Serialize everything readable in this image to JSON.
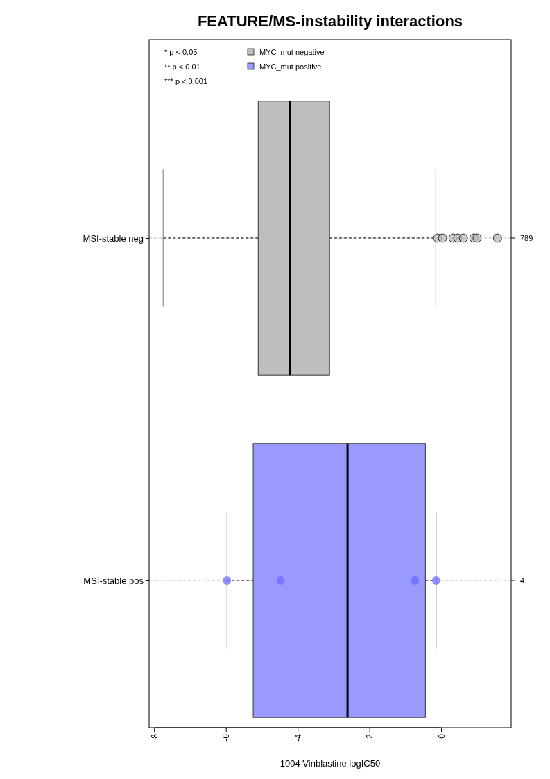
{
  "chart_data": {
    "type": "box",
    "orientation": "horizontal",
    "title": "FEATURE/MS-instability interactions",
    "xlabel": "1004 Vinblastine logIC50",
    "categories": [
      "MSI-stable neg",
      "MSI-stable pos"
    ],
    "xlim": [
      -8.14,
      1.95
    ],
    "xticks": [
      -8,
      -6,
      -4,
      -2,
      0
    ],
    "series": [
      {
        "name": "MYC_mut negative",
        "color": "#bebebe",
        "boxes": [
          {
            "low": -7.75,
            "q1": -5.1,
            "median": -4.21,
            "q3": -3.11,
            "high": -0.15,
            "outliers": [
              -0.1,
              0.04,
              0.33,
              0.46,
              0.62,
              0.91,
              1.0,
              1.57
            ]
          },
          null
        ]
      },
      {
        "name": "MYC_mut positive",
        "color": "#9999ff",
        "boxes": [
          null,
          {
            "low": -5.97,
            "q1": -5.24,
            "median": -2.61,
            "q3": -0.44,
            "high": -0.14
          }
        ]
      },
      {
        "type": "scatter",
        "color": "#6a6aff",
        "x": [
          "MSI-stable pos",
          "MSI-stable pos",
          "MSI-stable pos",
          "MSI-stable pos"
        ],
        "values": [
          -5.97,
          -4.48,
          -0.73,
          -0.14
        ]
      }
    ],
    "annotations": [
      "* p < 0.05",
      "** p < 0.01",
      "*** p < 0.001",
      "789",
      "4"
    ],
    "grid": "y",
    "legend": "top left",
    "marker": "circle"
  }
}
